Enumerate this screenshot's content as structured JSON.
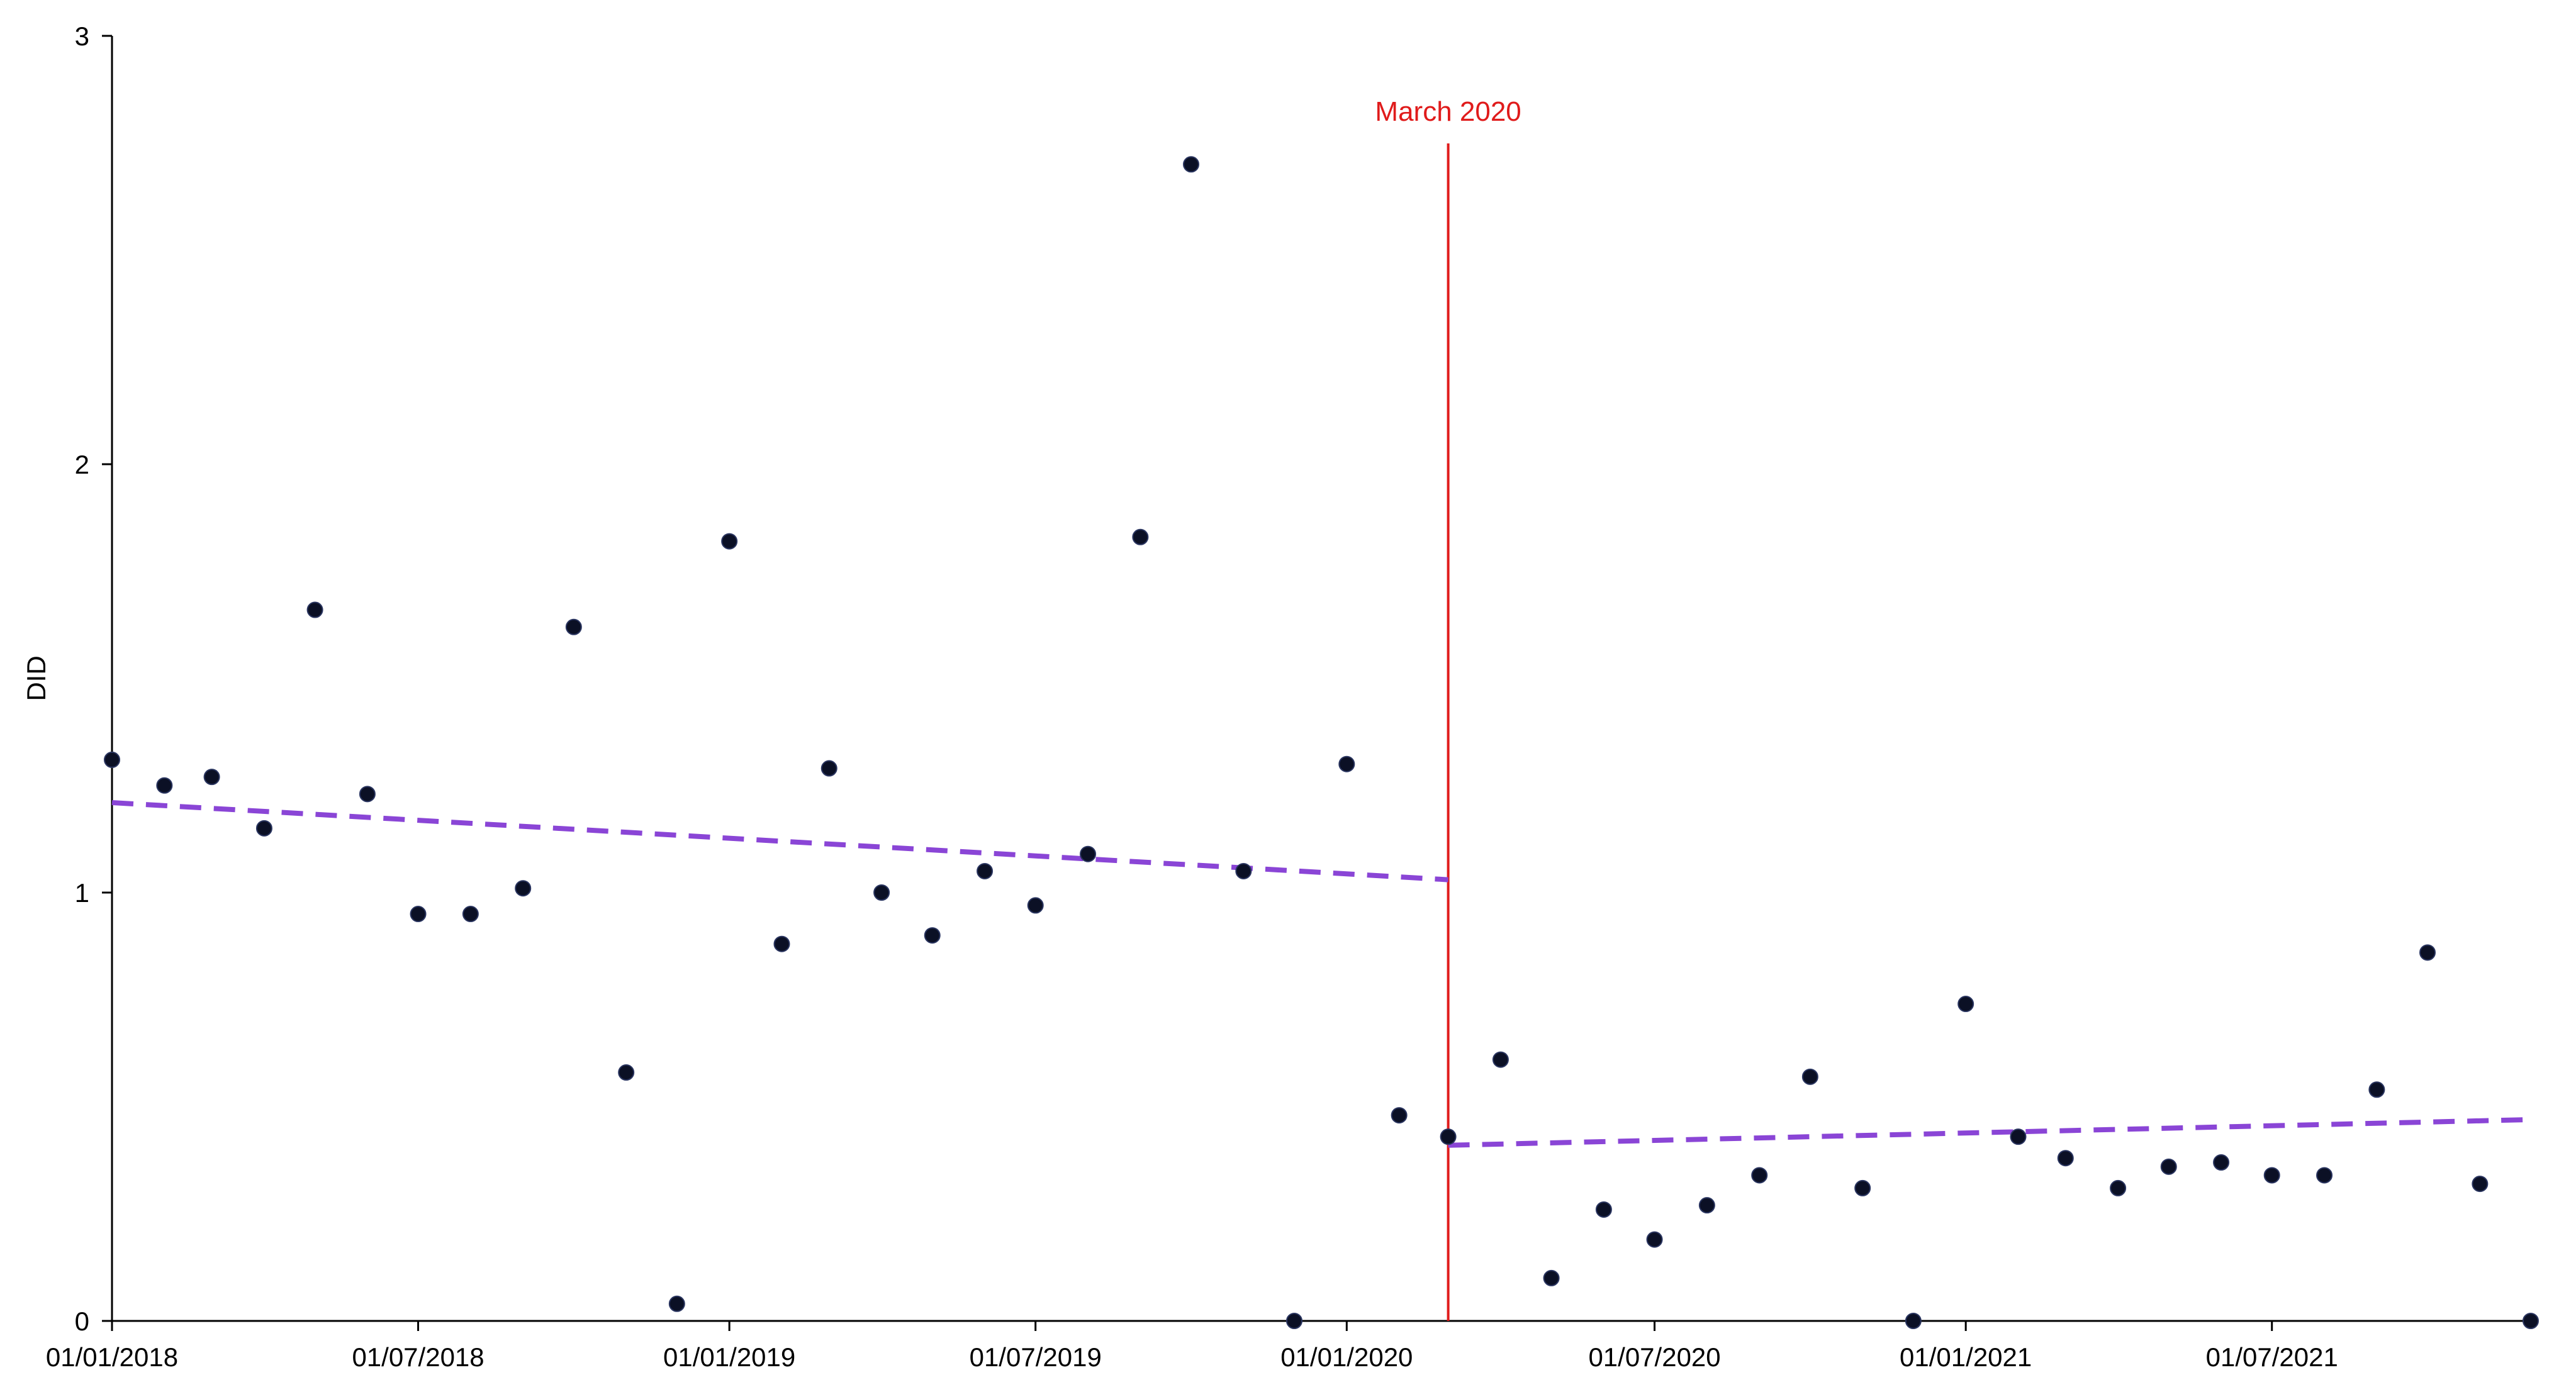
{
  "chart_data": {
    "type": "scatter",
    "title": "",
    "xlabel": "",
    "ylabel": "DID",
    "xlim": [
      "2018-01-01",
      "2021-12-01"
    ],
    "ylim": [
      0,
      3
    ],
    "x_ticks": [
      "2018-01-01",
      "2018-07-01",
      "2019-01-01",
      "2019-07-01",
      "2020-01-01",
      "2020-07-01",
      "2021-01-01",
      "2021-07-01"
    ],
    "x_tick_labels": [
      "01/01/2018",
      "01/07/2018",
      "01/01/2019",
      "01/07/2019",
      "01/01/2020",
      "01/07/2020",
      "01/01/2021",
      "01/07/2021"
    ],
    "y_ticks": [
      0,
      1,
      2,
      3
    ],
    "y_tick_labels": [
      "0",
      "1",
      "2",
      "3"
    ],
    "grid": false,
    "legend": "none",
    "marker_color": "#0b1025",
    "series": [
      {
        "x": [
          "2018-01-01",
          "2018-02-01",
          "2018-03-01",
          "2018-04-01",
          "2018-05-01",
          "2018-06-01",
          "2018-07-01",
          "2018-08-01",
          "2018-09-01",
          "2018-10-01",
          "2018-11-01",
          "2018-12-01",
          "2019-01-01",
          "2019-02-01",
          "2019-03-01",
          "2019-04-01",
          "2019-05-01",
          "2019-06-01",
          "2019-07-01",
          "2019-08-01",
          "2019-09-01",
          "2019-10-01",
          "2019-11-01",
          "2019-12-01",
          "2020-01-01",
          "2020-02-01",
          "2020-03-01",
          "2020-04-01",
          "2020-05-01",
          "2020-06-01",
          "2020-07-01",
          "2020-08-01",
          "2020-09-01",
          "2020-10-01",
          "2020-11-01",
          "2020-12-01",
          "2021-01-01",
          "2021-02-01",
          "2021-03-01",
          "2021-04-01",
          "2021-05-01",
          "2021-06-01",
          "2021-07-01",
          "2021-08-01",
          "2021-09-01",
          "2021-10-01",
          "2021-11-01",
          "2021-12-01"
        ],
        "y": [
          1.31,
          1.25,
          1.27,
          1.15,
          1.66,
          1.23,
          0.95,
          0.95,
          1.01,
          1.62,
          0.58,
          0.04,
          1.82,
          0.88,
          1.29,
          1.0,
          0.9,
          1.05,
          0.97,
          1.09,
          1.83,
          2.7,
          1.05,
          0.0,
          1.3,
          0.48,
          0.43,
          0.61,
          0.1,
          0.26,
          0.19,
          0.27,
          0.34,
          0.57,
          0.31,
          0.0,
          0.74,
          0.43,
          0.38,
          0.31,
          0.36,
          0.37,
          0.34,
          0.34,
          0.54,
          0.86,
          0.32,
          0.0
        ]
      }
    ],
    "trend_lines": [
      {
        "x": [
          "2018-01-01",
          "2020-03-01"
        ],
        "y": [
          1.21,
          1.03
        ],
        "color": "#8a45d6",
        "style": "dashed"
      },
      {
        "x": [
          "2020-03-01",
          "2021-12-01"
        ],
        "y": [
          0.41,
          0.47
        ],
        "color": "#8a45d6",
        "style": "dashed"
      }
    ],
    "annotations": [
      {
        "type": "vline",
        "x": "2020-03-01",
        "label": "March 2020",
        "color": "#e01b1b"
      }
    ]
  }
}
